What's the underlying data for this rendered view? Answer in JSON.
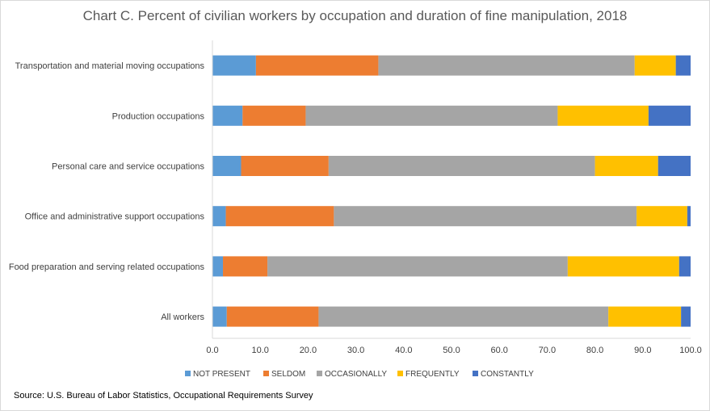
{
  "chart_data": {
    "type": "bar",
    "orientation": "horizontal",
    "stacked": true,
    "title": "Chart C. Percent of civilian workers by occupation and duration of fine manipulation, 2018",
    "source": "Source: U.S. Bureau of Labor Statistics, Occupational Requirements Survey",
    "categories": [
      "Transportation and material moving occupations",
      "Production occupations",
      "Personal care and service occupations",
      "Office and administrative support occupations",
      "Food preparation and serving related occupations",
      "All workers"
    ],
    "series": [
      {
        "name": "NOT PRESENT",
        "color": "#5b9bd5",
        "values": [
          9.1,
          6.3,
          6.0,
          2.8,
          2.2,
          3.0
        ]
      },
      {
        "name": "SELDOM",
        "color": "#ed7d31",
        "values": [
          25.6,
          13.2,
          18.3,
          22.6,
          9.3,
          19.2
        ]
      },
      {
        "name": "OCCASIONALLY",
        "color": "#a5a5a5",
        "values": [
          53.6,
          52.7,
          55.7,
          63.3,
          62.8,
          60.6
        ]
      },
      {
        "name": "FREQUENTLY",
        "color": "#ffc000",
        "values": [
          8.6,
          19.0,
          13.2,
          10.6,
          23.3,
          15.2
        ]
      },
      {
        "name": "CONSTANTLY",
        "color": "#4472c4",
        "values": [
          3.1,
          8.8,
          6.8,
          0.7,
          2.4,
          2.0
        ]
      }
    ],
    "xlim": [
      0,
      100
    ],
    "xticks": [
      "0.0",
      "10.0",
      "20.0",
      "30.0",
      "40.0",
      "50.0",
      "60.0",
      "70.0",
      "80.0",
      "90.0",
      "100.0"
    ],
    "grid": false,
    "legend_position": "bottom"
  }
}
